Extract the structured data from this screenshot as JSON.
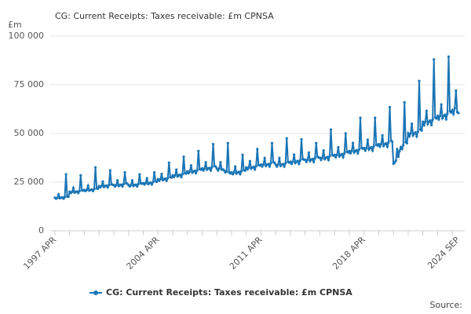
{
  "chart_data": {
    "type": "line",
    "title": "CG: Current Receipts: Taxes receivable: £m CPNSA",
    "y_unit": "£m",
    "source": "Source:",
    "categories": [
      "1997 APR",
      null,
      null,
      null,
      null,
      null,
      null,
      null,
      null,
      null,
      null,
      null,
      null,
      null,
      null,
      null,
      null,
      null,
      null,
      null,
      null,
      null,
      null,
      null,
      null,
      null,
      null,
      null,
      null,
      null,
      null,
      null,
      null,
      null,
      null,
      null,
      null,
      null,
      null,
      null,
      null,
      null,
      null,
      null,
      null,
      null,
      null,
      null,
      null,
      null,
      null,
      null,
      null,
      null,
      null,
      null,
      null,
      null,
      null,
      null,
      null,
      null,
      null,
      null,
      null,
      null,
      null,
      null,
      null,
      null,
      null,
      null,
      null,
      null,
      null,
      null,
      null,
      null,
      null,
      null,
      null,
      null,
      null,
      null,
      "2004 APR",
      null,
      null,
      null,
      null,
      null,
      null,
      null,
      null,
      null,
      null,
      null,
      null,
      null,
      null,
      null,
      null,
      null,
      null,
      null,
      null,
      null,
      null,
      null,
      null,
      null,
      null,
      null,
      null,
      null,
      null,
      null,
      null,
      null,
      null,
      null,
      null,
      null,
      null,
      null,
      null,
      null,
      null,
      null,
      null,
      null,
      null,
      null,
      null,
      null,
      null,
      null,
      null,
      null,
      null,
      null,
      null,
      null,
      null,
      null,
      null,
      null,
      null,
      null,
      null,
      null,
      null,
      null,
      null,
      null,
      null,
      null,
      null,
      null,
      null,
      null,
      null,
      null,
      null,
      null,
      null,
      null,
      null,
      null,
      "2011 APR",
      null,
      null,
      null,
      null,
      null,
      null,
      null,
      null,
      null,
      null,
      null,
      null,
      null,
      null,
      null,
      null,
      null,
      null,
      null,
      null,
      null,
      null,
      null,
      null,
      null,
      null,
      null,
      null,
      null,
      null,
      null,
      null,
      null,
      null,
      null,
      null,
      null,
      null,
      null,
      null,
      null,
      null,
      null,
      null,
      null,
      null,
      null,
      null,
      null,
      null,
      null,
      null,
      null,
      null,
      null,
      null,
      null,
      null,
      null,
      null,
      null,
      null,
      null,
      null,
      null,
      null,
      null,
      null,
      null,
      null,
      null,
      null,
      null,
      null,
      null,
      null,
      null,
      null,
      null,
      null,
      null,
      null,
      null,
      "2018 APR",
      null,
      null,
      null,
      null,
      null,
      null,
      null,
      null,
      null,
      null,
      null,
      null,
      null,
      null,
      null,
      null,
      null,
      null,
      null,
      null,
      null,
      null,
      null,
      null,
      null,
      null,
      null,
      null,
      null,
      null,
      null,
      null,
      null,
      null,
      null,
      null,
      null,
      null,
      null,
      null,
      null,
      null,
      null,
      null,
      null,
      null,
      null,
      null,
      null,
      null,
      null,
      null,
      null,
      null,
      null,
      null,
      null,
      null,
      null,
      null,
      null,
      null,
      null,
      null,
      null,
      null,
      null,
      null,
      null,
      null,
      null,
      null,
      null,
      null,
      null,
      null,
      "2024 SEP"
    ],
    "series": [
      {
        "name": "CG: Current Receipts: Taxes receivable: £m CPNSA",
        "color": "#1a75b5",
        "values": [
          17000,
          16500,
          17000,
          18700,
          16700,
          17000,
          17200,
          16500,
          17300,
          29000,
          17700,
          17500,
          20000,
          19400,
          20000,
          22000,
          19600,
          20000,
          20200,
          19400,
          20400,
          28500,
          20800,
          20600,
          21000,
          20400,
          21000,
          23100,
          20600,
          21000,
          21200,
          20400,
          21400,
          32500,
          21800,
          21600,
          23000,
          22300,
          23000,
          25300,
          22500,
          23000,
          23200,
          22300,
          23500,
          31000,
          23900,
          23700,
          23500,
          22800,
          23500,
          25900,
          23000,
          23500,
          23700,
          22800,
          24000,
          30000,
          24400,
          24200,
          23500,
          22800,
          23500,
          25900,
          23000,
          23500,
          23700,
          22800,
          24000,
          29000,
          24400,
          24200,
          24500,
          23800,
          24500,
          27000,
          24000,
          24500,
          24700,
          23800,
          25000,
          30000,
          25500,
          25200,
          26500,
          25700,
          26500,
          29200,
          26000,
          26500,
          26800,
          25700,
          27000,
          35000,
          27600,
          27300,
          28500,
          27600,
          28500,
          31400,
          27900,
          28500,
          28800,
          27600,
          29100,
          38000,
          29600,
          29400,
          30500,
          29600,
          30500,
          33600,
          29900,
          30500,
          30800,
          29600,
          31100,
          41000,
          31700,
          31400,
          32000,
          31000,
          32000,
          35200,
          31400,
          32000,
          32300,
          31000,
          32600,
          44500,
          33300,
          33000,
          32000,
          31000,
          32000,
          35200,
          31400,
          31500,
          31000,
          30000,
          30500,
          45000,
          30000,
          29500,
          30000,
          29100,
          30000,
          33000,
          29400,
          30000,
          30300,
          29100,
          30600,
          39000,
          31200,
          30900,
          32500,
          31500,
          32500,
          35800,
          31900,
          32500,
          32800,
          31500,
          33200,
          42000,
          33800,
          33500,
          34000,
          33000,
          34000,
          37400,
          33300,
          34000,
          34300,
          33000,
          34700,
          45000,
          35400,
          35000,
          34000,
          33000,
          34000,
          37400,
          33300,
          34000,
          34300,
          33000,
          34700,
          47500,
          35400,
          35000,
          35500,
          34400,
          35500,
          39100,
          34800,
          35500,
          35900,
          34400,
          36200,
          47000,
          36900,
          36600,
          36500,
          35400,
          36500,
          40200,
          35800,
          36500,
          36900,
          35400,
          37200,
          45000,
          38000,
          37600,
          37500,
          36400,
          37500,
          41300,
          36800,
          37500,
          37900,
          36400,
          38300,
          52000,
          39000,
          38600,
          39000,
          37800,
          39000,
          42900,
          38200,
          39000,
          39400,
          37800,
          39800,
          50000,
          40600,
          40200,
          41000,
          39800,
          41000,
          45100,
          40200,
          41000,
          41400,
          39800,
          41800,
          58000,
          42600,
          42200,
          42500,
          41200,
          42500,
          46800,
          41700,
          42500,
          42900,
          41200,
          43400,
          58000,
          44200,
          43800,
          44500,
          43200,
          44500,
          49000,
          43600,
          44500,
          44900,
          43200,
          45400,
          63500,
          46300,
          45800,
          34500,
          35000,
          36000,
          42000,
          38000,
          41000,
          43000,
          42000,
          44000,
          66000,
          45500,
          45000,
          50000,
          48500,
          50000,
          55000,
          49000,
          50000,
          50500,
          48500,
          51000,
          77000,
          52000,
          51500,
          56000,
          54300,
          56000,
          61600,
          54900,
          56000,
          56600,
          54300,
          57100,
          88000,
          58200,
          57700,
          59000,
          57200,
          59000,
          64900,
          57800,
          59000,
          59600,
          57200,
          60200,
          89500,
          61400,
          60800,
          62000,
          60000,
          63000,
          72000,
          61000,
          60500
        ]
      }
    ],
    "ylim": [
      0,
      100000
    ],
    "yticks": [
      0,
      {
        "value": 25000,
        "label": "25 000"
      },
      {
        "value": 50000,
        "label": "50 000"
      },
      {
        "value": 75000,
        "label": "75 000"
      },
      {
        "value": 100000,
        "label": "100 000"
      }
    ],
    "grid": true,
    "legend": "bottom"
  }
}
